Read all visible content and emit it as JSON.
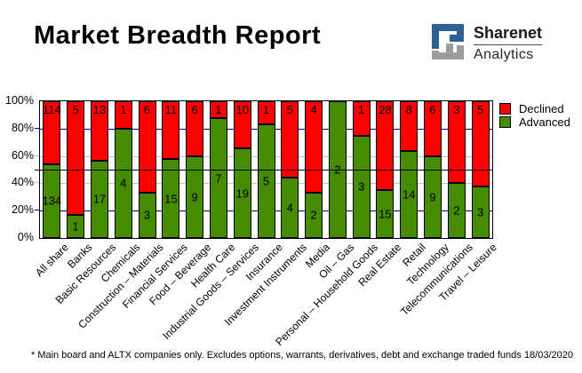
{
  "header": {
    "title": "Market Breadth Report",
    "brand": {
      "name": "Sharenet",
      "sub": "Analytics"
    }
  },
  "chart_data": {
    "type": "bar",
    "stacking": "percent",
    "title": "Market Breadth Report",
    "categories": [
      "All share",
      "Banks",
      "Basic Resources",
      "Chemicals",
      "Construction – Materials",
      "Financial Services",
      "Food – Beverage",
      "Health Care",
      "Industrial Goods – Services",
      "Insurance",
      "Investment Instruments",
      "Media",
      "Oil – Gas",
      "Personal – Household Goods",
      "Real Estate",
      "Retail",
      "Technology",
      "Telecommunications",
      "Travel – Leisure"
    ],
    "series": [
      {
        "name": "Declined",
        "color": "#ff0000",
        "values": [
          114,
          5,
          13,
          1,
          6,
          11,
          6,
          1,
          10,
          1,
          5,
          4,
          0,
          1,
          28,
          8,
          6,
          3,
          5
        ]
      },
      {
        "name": "Advanced",
        "color": "#478b00",
        "values": [
          134,
          1,
          17,
          4,
          3,
          15,
          9,
          7,
          19,
          5,
          4,
          2,
          2,
          3,
          15,
          14,
          9,
          2,
          3
        ]
      }
    ],
    "y_axis": {
      "ticks": [
        "0%",
        "20%",
        "40%",
        "60%",
        "80%",
        "100%"
      ],
      "range": [
        0,
        100
      ]
    },
    "gridlines": [
      {
        "pct": 20,
        "color": "#000080"
      },
      {
        "pct": 40,
        "color": "#c0c0c0"
      },
      {
        "pct": 60,
        "color": "#c0c0c0"
      },
      {
        "pct": 80,
        "color": "#000080"
      }
    ],
    "reference_line": {
      "pct": 50,
      "color": "#000000"
    },
    "legend_position": "top-right-outside",
    "grid": true
  },
  "footer": {
    "note": "* Main board and ALTX companies only. Excludes options, warrants, derivatives, debt and exchange traded funds",
    "date": "18/03/2020"
  }
}
